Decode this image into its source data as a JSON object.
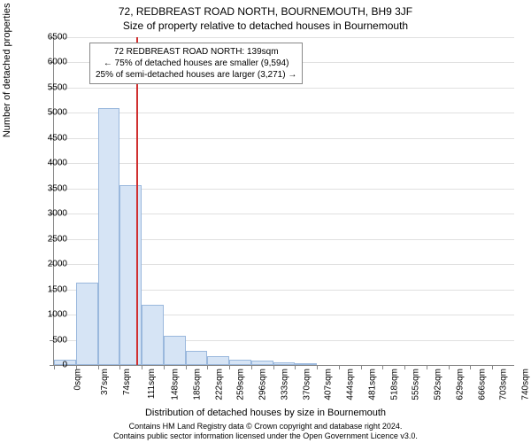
{
  "title_main": "72, REDBREAST ROAD NORTH, BOURNEMOUTH, BH9 3JF",
  "title_sub": "Size of property relative to detached houses in Bournemouth",
  "y_axis_label": "Number of detached properties",
  "x_axis_label": "Distribution of detached houses by size in Bournemouth",
  "footer_line1": "Contains HM Land Registry data © Crown copyright and database right 2024.",
  "footer_line2": "Contains public sector information licensed under the Open Government Licence v3.0.",
  "chart": {
    "type": "histogram",
    "ylim": [
      0,
      6500
    ],
    "ytick_step": 500,
    "x_tick_step_sqm": 37,
    "x_tick_count": 21,
    "bar_color": "#d6e4f5",
    "bar_border_color": "#9ab8dd",
    "grid_color": "#e0e0e0",
    "axis_color": "#888888",
    "ref_line_color": "#d03030",
    "background_color": "#ffffff",
    "text_color": "#000000",
    "title_fontsize": 12,
    "label_fontsize": 11,
    "tick_fontsize": 10,
    "bars": [
      {
        "x_sqm": 0,
        "count": 100
      },
      {
        "x_sqm": 37,
        "count": 1630
      },
      {
        "x_sqm": 74,
        "count": 5100
      },
      {
        "x_sqm": 111,
        "count": 3570
      },
      {
        "x_sqm": 148,
        "count": 1200
      },
      {
        "x_sqm": 185,
        "count": 580
      },
      {
        "x_sqm": 222,
        "count": 280
      },
      {
        "x_sqm": 259,
        "count": 170
      },
      {
        "x_sqm": 296,
        "count": 100
      },
      {
        "x_sqm": 333,
        "count": 80
      },
      {
        "x_sqm": 370,
        "count": 50
      },
      {
        "x_sqm": 407,
        "count": 40
      }
    ],
    "ref_line_sqm": 139,
    "annotation": {
      "line1": "72 REDBREAST ROAD NORTH: 139sqm",
      "line2": "← 75% of detached houses are smaller (9,594)",
      "line3": "25% of semi-detached houses are larger (3,271) →"
    }
  }
}
